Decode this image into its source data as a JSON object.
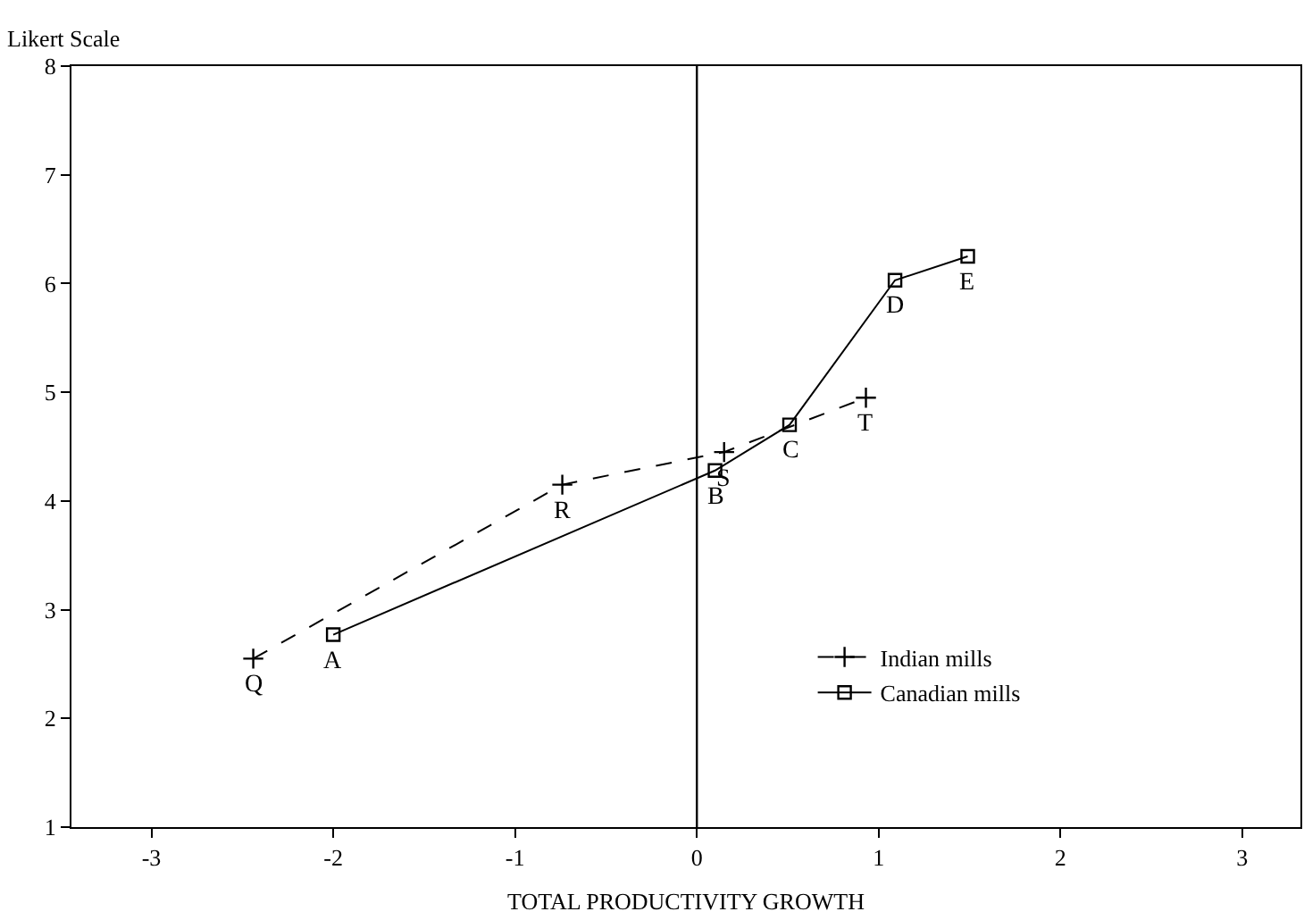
{
  "chart_data": {
    "type": "line",
    "xlabel": "TOTAL PRODUCTIVITY GROWTH",
    "ylabel": "Likert Scale",
    "xlim": [
      -3.44,
      3.32
    ],
    "xticks": [
      -3,
      -2,
      -1,
      0,
      1,
      2,
      3
    ],
    "ylim": [
      1,
      8
    ],
    "yticks": [
      1,
      2,
      3,
      4,
      5,
      6,
      7,
      8
    ],
    "legend": "bottom right",
    "series": [
      {
        "name": "Indian mills",
        "color": "#000000",
        "marker": "cross",
        "line_style": "dashed",
        "x": [
          -2.44,
          -0.74,
          0.15,
          0.93
        ],
        "values": [
          2.55,
          4.15,
          4.45,
          4.95
        ]
      },
      {
        "name": "Canadian mills",
        "color": "#000000",
        "marker": "square",
        "line_style": "solid",
        "x": [
          -2.0,
          0.1,
          0.51,
          1.09,
          1.49
        ],
        "values": [
          2.77,
          4.28,
          4.7,
          6.03,
          6.25
        ]
      }
    ],
    "ref_lines": [
      {
        "axis": "x",
        "value": 0,
        "color": "#000000",
        "line_style": "solid"
      }
    ],
    "annotations": [
      {
        "text": "Q",
        "x": -2.44,
        "y": 2.55
      },
      {
        "text": "R",
        "x": -0.74,
        "y": 4.15
      },
      {
        "text": "S",
        "x": 0.15,
        "y": 4.45
      },
      {
        "text": "T",
        "x": 0.93,
        "y": 4.95
      },
      {
        "text": "A",
        "x": -2.0,
        "y": 2.77
      },
      {
        "text": "B",
        "x": 0.1,
        "y": 4.28
      },
      {
        "text": "C",
        "x": 0.51,
        "y": 4.7
      },
      {
        "text": "D",
        "x": 1.09,
        "y": 6.03
      },
      {
        "text": "E",
        "x": 1.49,
        "y": 6.25
      }
    ]
  }
}
